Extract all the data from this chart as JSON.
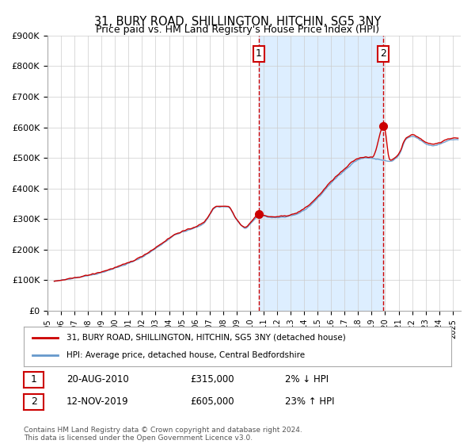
{
  "title": "31, BURY ROAD, SHILLINGTON, HITCHIN, SG5 3NY",
  "subtitle": "Price paid vs. HM Land Registry's House Price Index (HPI)",
  "ylabel_ticks": [
    "£0",
    "£100K",
    "£200K",
    "£300K",
    "£400K",
    "£500K",
    "£600K",
    "£700K",
    "£800K",
    "£900K"
  ],
  "ylim": [
    0,
    900000
  ],
  "xlim_start": 1995.4,
  "xlim_end": 2025.6,
  "sale1_date": 2010.64,
  "sale1_price": 315000,
  "sale1_label": "1",
  "sale1_text": "20-AUG-2010",
  "sale1_pct": "2% ↓ HPI",
  "sale2_date": 2019.87,
  "sale2_price": 605000,
  "sale2_label": "2",
  "sale2_text": "12-NOV-2019",
  "sale2_pct": "23% ↑ HPI",
  "line_color_hpi": "#6699cc",
  "line_color_price": "#cc0000",
  "shade_color": "#ddeeff",
  "dashed_color": "#cc0000",
  "marker_color": "#cc0000",
  "grid_color": "#cccccc",
  "background_color": "#ffffff",
  "legend_label1": "31, BURY ROAD, SHILLINGTON, HITCHIN, SG5 3NY (detached house)",
  "legend_label2": "HPI: Average price, detached house, Central Bedfordshire",
  "footer": "Contains HM Land Registry data © Crown copyright and database right 2024.\nThis data is licensed under the Open Government Licence v3.0."
}
